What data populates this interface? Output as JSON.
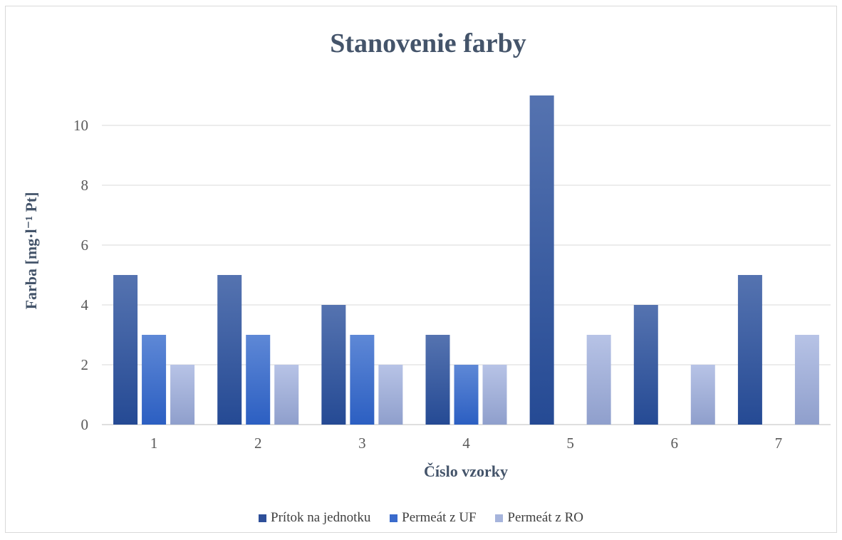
{
  "chart_data": {
    "type": "bar",
    "title": "Stanovenie farby",
    "xlabel": "Číslo vzorky",
    "ylabel": "Farba [mg·l⁻¹ Pt]",
    "categories": [
      "1",
      "2",
      "3",
      "4",
      "5",
      "6",
      "7"
    ],
    "ylim": [
      0,
      12
    ],
    "yticks": [
      0,
      2,
      4,
      6,
      8,
      10
    ],
    "grid": true,
    "legend_position": "bottom",
    "series": [
      {
        "name": "Prítok na jednotku",
        "color": "#2e4f99",
        "values": [
          5,
          5,
          4,
          3,
          11,
          4,
          5
        ]
      },
      {
        "name": "Permeát z UF",
        "color": "#3a6bcc",
        "values": [
          3,
          3,
          3,
          2,
          0,
          0,
          0
        ]
      },
      {
        "name": "Permeát z RO",
        "color": "#a6b4dc",
        "values": [
          2,
          2,
          2,
          2,
          3,
          2,
          3
        ]
      }
    ]
  }
}
